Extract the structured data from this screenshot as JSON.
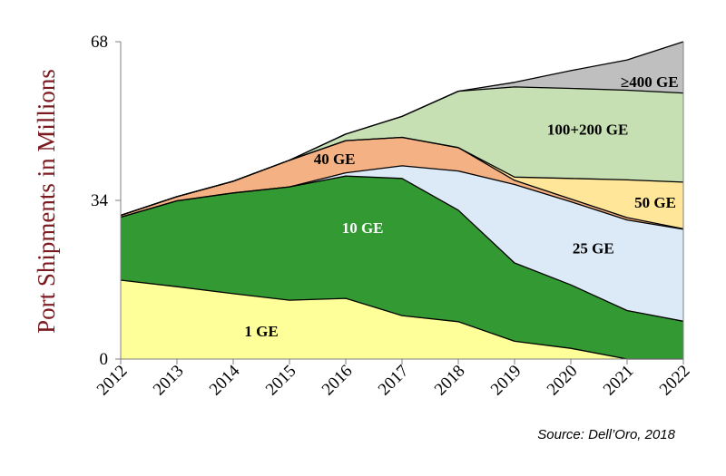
{
  "chart_data": {
    "type": "area",
    "stacked": true,
    "title": "",
    "xlabel": "",
    "ylabel": "Port Shipments in Millions",
    "x": [
      "2012",
      "2013",
      "2014",
      "2015",
      "2016",
      "2017",
      "2018",
      "2019",
      "2020",
      "2021",
      "2022"
    ],
    "ylim": [
      0,
      68
    ],
    "yticks": [
      "0",
      "34",
      "68"
    ],
    "grid": false,
    "series": [
      {
        "name": "1 GE",
        "color": "#ffff99",
        "label_color": "#000000",
        "values": [
          16.9,
          15.5,
          14.0,
          12.6,
          13.0,
          9.3,
          8.0,
          3.8,
          2.3,
          0,
          0
        ]
      },
      {
        "name": "10 GE",
        "color": "#339933",
        "label_color": "#ffffff",
        "values": [
          13.5,
          18.4,
          21.6,
          24.3,
          26.2,
          29.4,
          23.9,
          16.8,
          13.6,
          10.4,
          8.1
        ]
      },
      {
        "name": "25 GE",
        "color": "#dce9f6",
        "label_color": "#000000",
        "values": [
          0,
          0,
          0,
          0,
          0.7,
          2.7,
          8.4,
          16.8,
          17.8,
          19.4,
          19.7
        ]
      },
      {
        "name": "40 GE",
        "color": "#f4b183",
        "label_color": "#000000",
        "values": [
          0.4,
          0.9,
          2.5,
          5.7,
          6.9,
          6.1,
          5.0,
          0.9,
          0.6,
          0.5,
          0.1
        ]
      },
      {
        "name": "50 GE",
        "color": "#ffe699",
        "label_color": "#000000",
        "values": [
          0,
          0,
          0,
          0,
          0,
          0,
          0,
          0.7,
          4.4,
          8.1,
          10.0
        ]
      },
      {
        "name": "100+200 GE",
        "color": "#c6e0b4",
        "label_color": "#000000",
        "values": [
          0,
          0,
          0,
          0,
          1.4,
          4.5,
          12.1,
          19.3,
          19.3,
          19.2,
          19.1
        ]
      },
      {
        "name": "≥400 GE",
        "color": "#bfbfbf",
        "label_color": "#000000",
        "values": [
          0,
          0,
          0,
          0,
          0,
          0,
          0,
          1.0,
          3.8,
          6.5,
          11.0
        ]
      }
    ],
    "annotations": [
      "Source: Dell’Oro, 2018"
    ]
  }
}
